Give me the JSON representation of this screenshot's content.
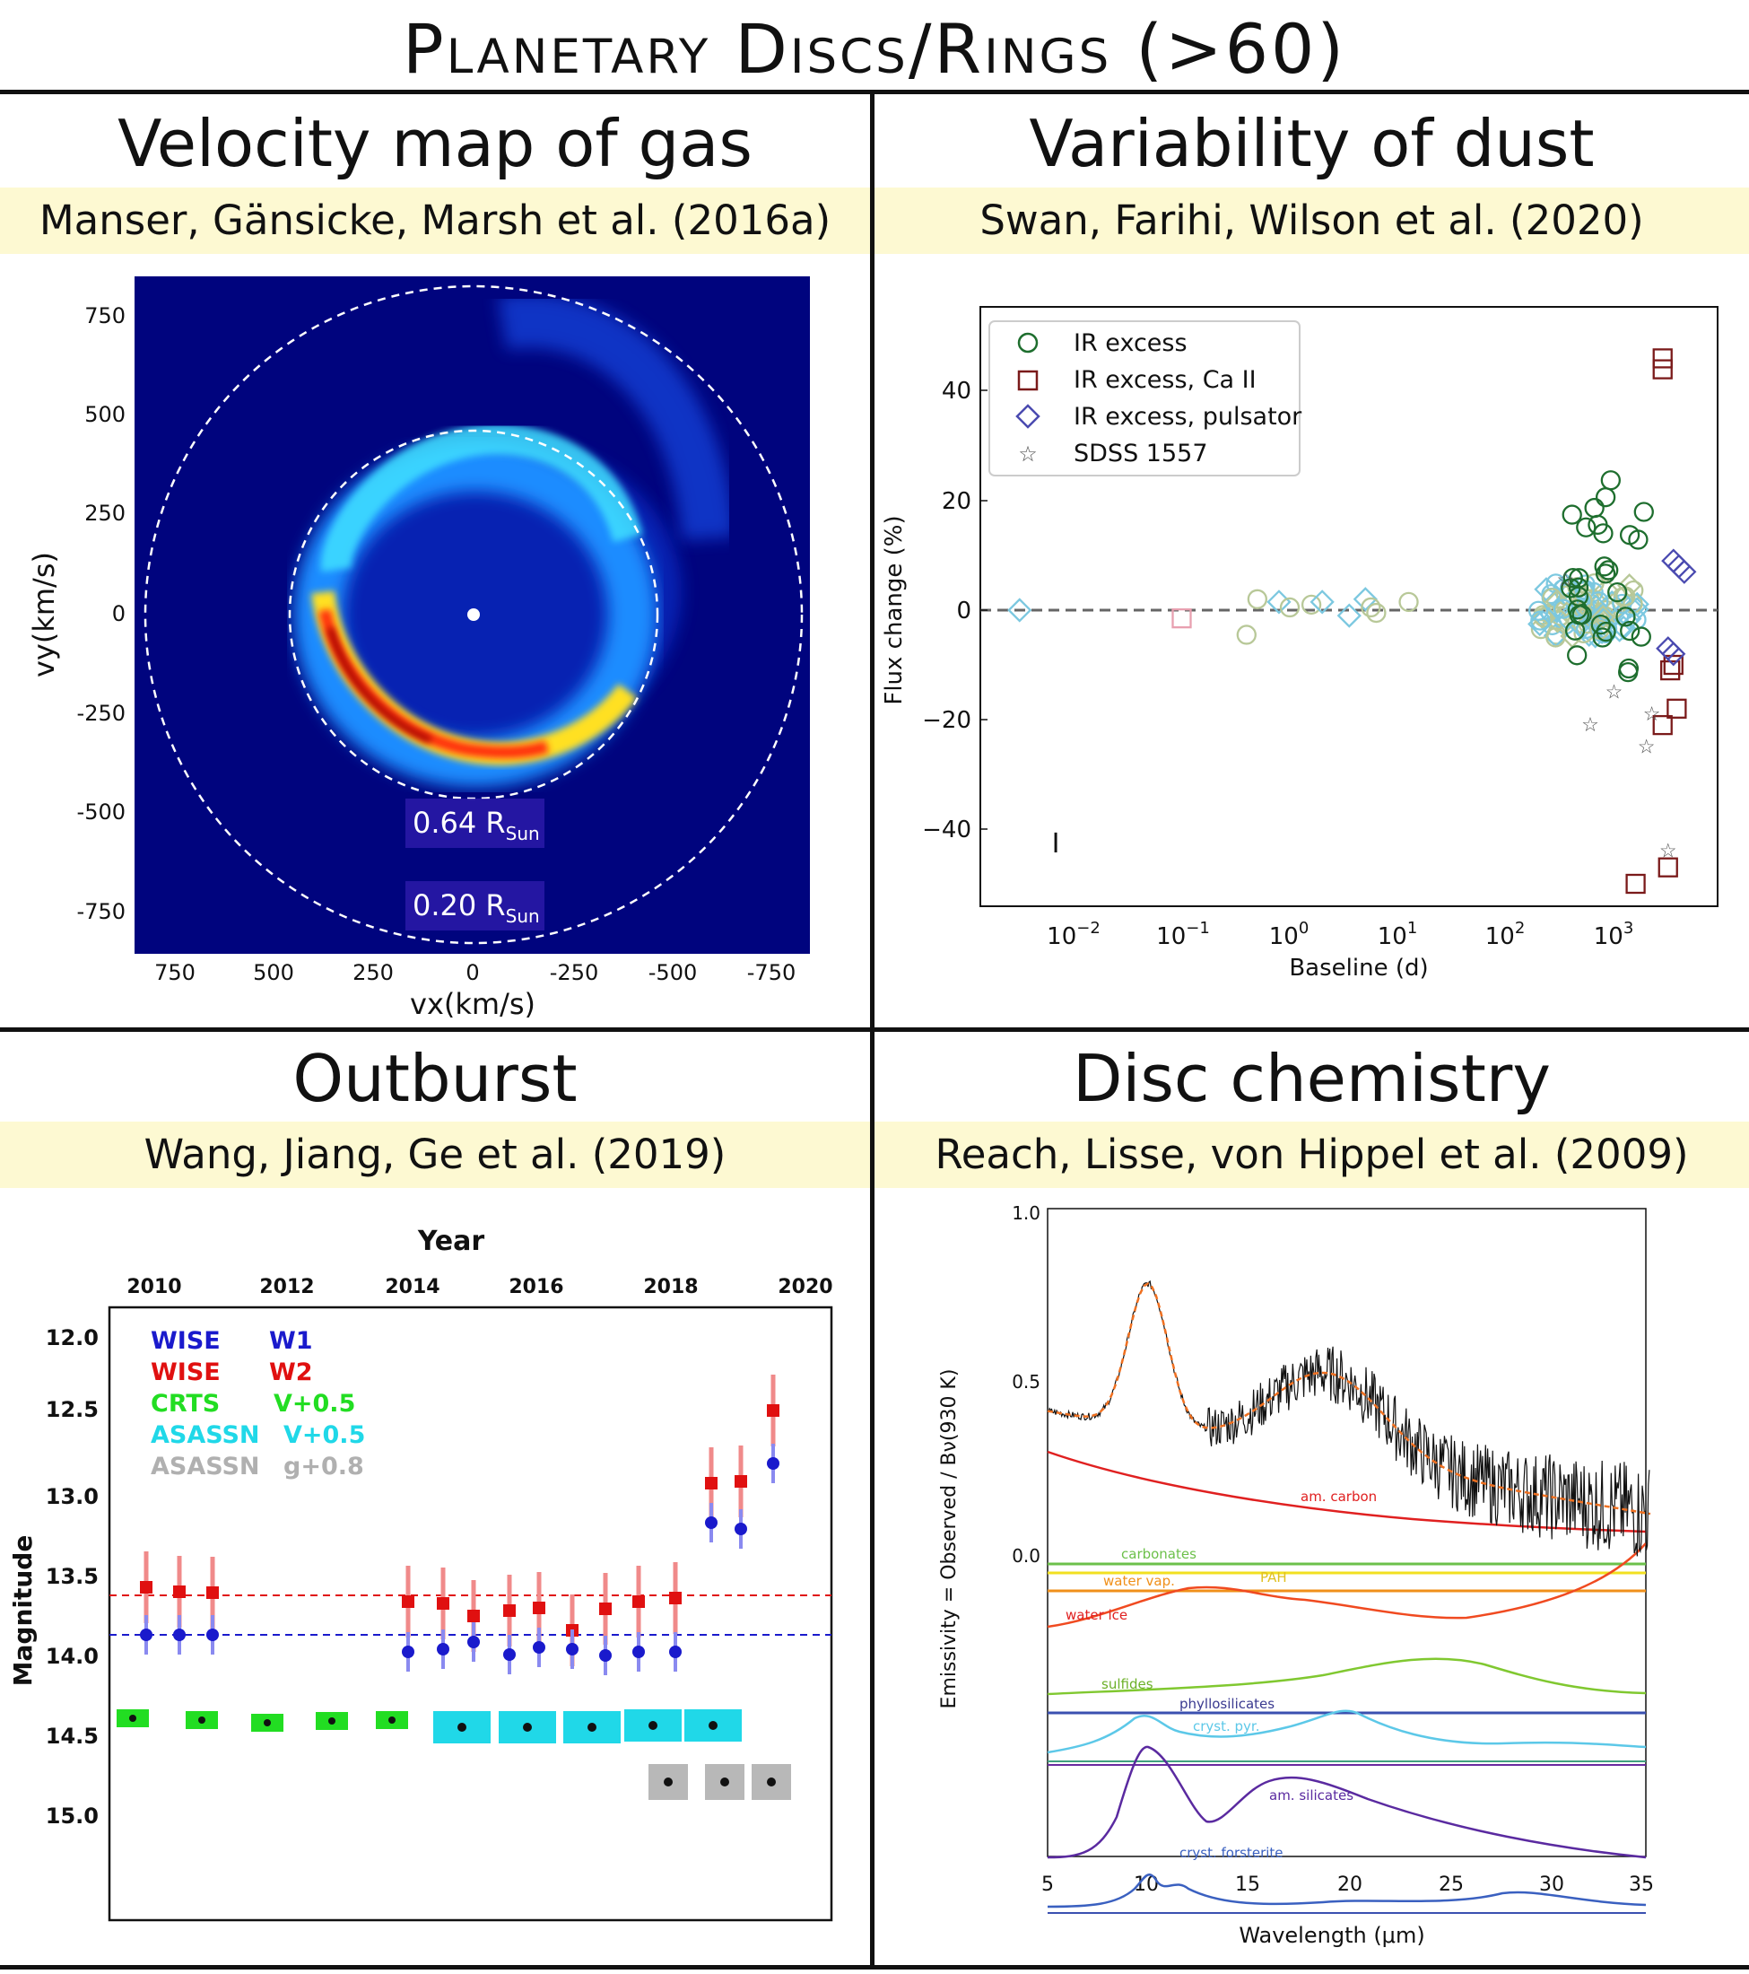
{
  "header": {
    "title": "Planetary Discs/Rings (>60)"
  },
  "panels": {
    "velocity": {
      "title": "Velocity map of gas",
      "citation": "Manser, Gänsicke, Marsh et al. (2016a)",
      "ylabel": "vy(km/s)",
      "xlabel": "vx(km/s)",
      "yticks": [
        "750",
        "500",
        "250",
        "0",
        "-250",
        "-500",
        "-750"
      ],
      "xticks": [
        "750",
        "500",
        "250",
        "0",
        "-250",
        "-500",
        "-750"
      ],
      "ring_inner_label": "0.64 R",
      "ring_outer_label": "0.20 R",
      "sun_subscript": "Sun"
    },
    "variability": {
      "title": "Variability of dust",
      "citation": "Swan, Farihi, Wilson et al. (2020)",
      "ylabel": "Flux change (%)",
      "xlabel": "Baseline (d)",
      "legend": [
        "IR excess",
        "IR excess, Ca II",
        "IR excess, pulsator",
        "SDSS 1557"
      ],
      "yticks": [
        "40",
        "20",
        "0",
        "−20",
        "−40"
      ],
      "xticks": [
        "10",
        "10",
        "10",
        "10",
        "10",
        "10"
      ],
      "xexps": [
        "−2",
        "−1",
        "0",
        "1",
        "2",
        "3"
      ],
      "errbar_label": "I"
    },
    "outburst": {
      "title": "Outburst",
      "citation": "Wang, Jiang, Ge et al. (2019)",
      "top_label": "Year",
      "years": [
        "2010",
        "2012",
        "2014",
        "2016",
        "2018",
        "2020"
      ],
      "ylabel": "Magnitude",
      "yticks": [
        "12.0",
        "12.5",
        "13.0",
        "13.5",
        "14.0",
        "14.5",
        "15.0"
      ],
      "legend": [
        {
          "name": "WISE",
          "band": "W1",
          "color": "#1a1acc"
        },
        {
          "name": "WISE",
          "band": "W2",
          "color": "#e01010"
        },
        {
          "name": "CRTS",
          "band": "V+0.5",
          "color": "#22dd22"
        },
        {
          "name": "ASASSN",
          "band": "V+0.5",
          "color": "#20d8e8"
        },
        {
          "name": "ASASSN",
          "band": "g+0.8",
          "color": "#b0b0b0"
        }
      ]
    },
    "chemistry": {
      "title": "Disc chemistry",
      "citation": "Reach, Lisse, von Hippel et al. (2009)",
      "ylabel": "Emissivity = Observed / Bν(930 K)",
      "xlabel": "Wavelength (μm)",
      "yticks": [
        "1.0",
        "0.5",
        "0.0"
      ],
      "xticks": [
        "5",
        "10",
        "15",
        "20",
        "25",
        "30",
        "35"
      ],
      "components": {
        "carbon": "am. carbon",
        "carbonates": "carbonates",
        "water_vap": "water vap.",
        "pah": "PAH",
        "water_ice": "water ice",
        "sulfides": "sulfides",
        "phyllosilicates": "phyllosilicates",
        "cryst_pyr": "cryst. pyr.",
        "am_silicates": "am. silicates",
        "forsterite": "cryst. forsterite"
      }
    }
  }
}
